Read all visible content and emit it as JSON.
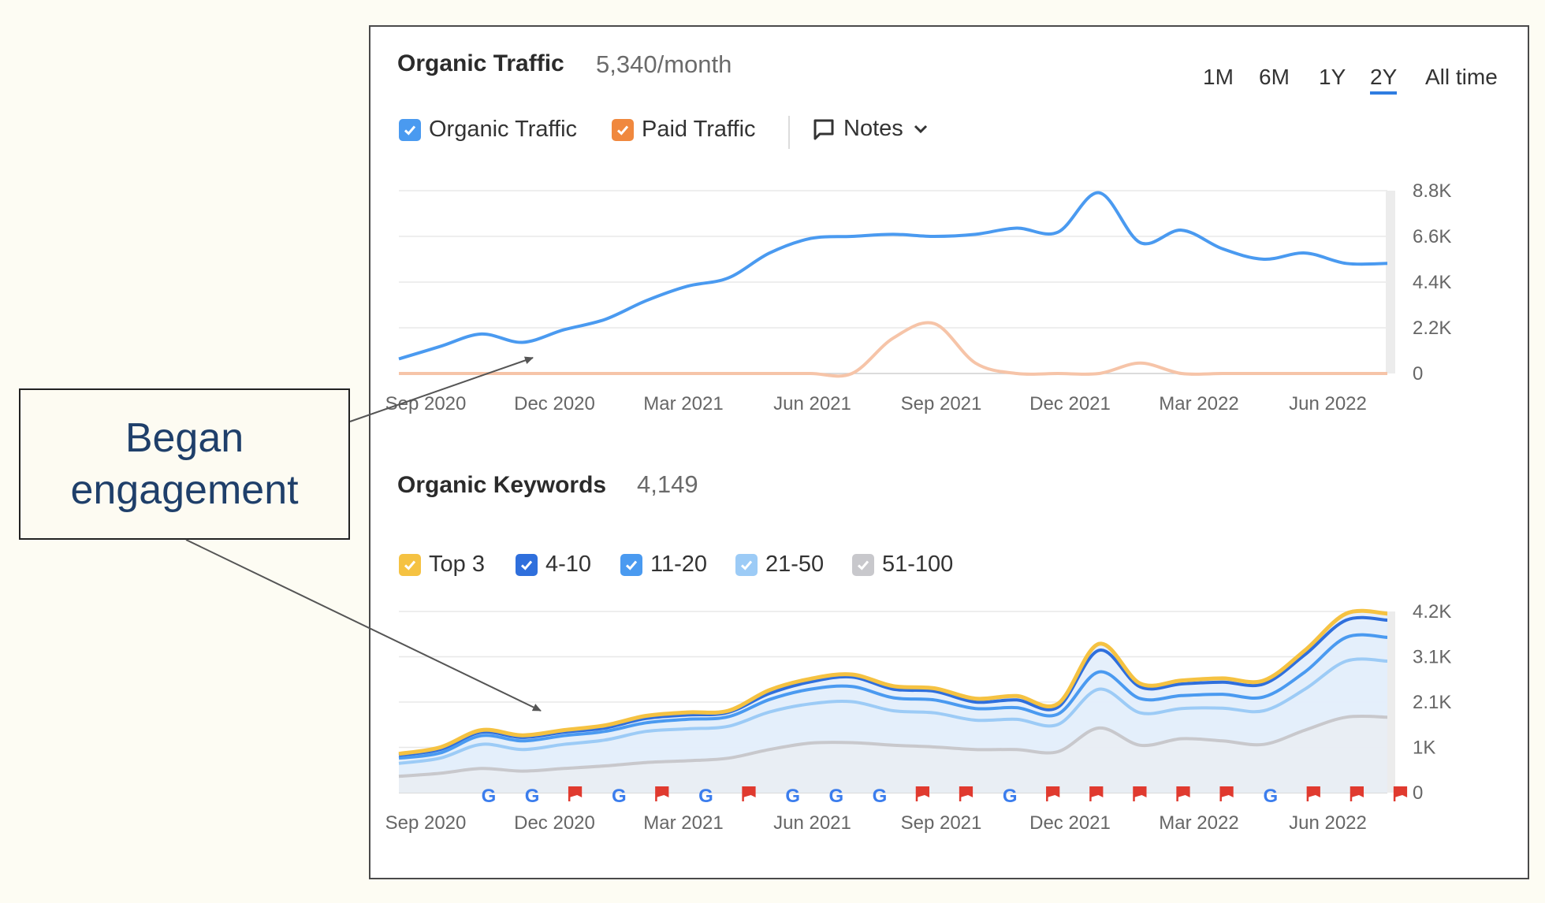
{
  "panel": {
    "traffic_title": "Organic Traffic",
    "traffic_value": "5,340/month",
    "ranges": [
      "1M",
      "6M",
      "1Y",
      "2Y",
      "All time"
    ],
    "active_range": "2Y",
    "traffic_legend": [
      {
        "label": "Organic Traffic",
        "color": "#4a9af0"
      },
      {
        "label": "Paid Traffic",
        "color": "#f0883e"
      }
    ],
    "notes_label": "Notes",
    "keywords_title": "Organic Keywords",
    "keywords_value": "4,149",
    "keywords_legend": [
      {
        "label": "Top 3",
        "color": "#f5c242"
      },
      {
        "label": "4-10",
        "color": "#2f6fdc"
      },
      {
        "label": "11-20",
        "color": "#4a9af0"
      },
      {
        "label": "21-50",
        "color": "#9ccbf6"
      },
      {
        "label": "51-100",
        "color": "#c8c8cc"
      }
    ]
  },
  "annotation": {
    "text_line1": "Began",
    "text_line2": "engagement"
  },
  "chart_data": [
    {
      "type": "line",
      "x_ticks": [
        "Sep 2020",
        "Dec 2020",
        "Mar 2021",
        "Jun 2021",
        "Sep 2021",
        "Dec 2021",
        "Mar 2022",
        "Jun 2022"
      ],
      "y_ticks": [
        "0",
        "2.2K",
        "4.4K",
        "6.6K",
        "8.8K"
      ],
      "ylim": [
        0,
        8800
      ],
      "x": [
        0,
        1,
        2,
        3,
        4,
        5,
        6,
        7,
        8,
        9,
        10,
        11,
        12,
        13,
        14,
        15,
        16,
        17,
        18,
        19,
        20,
        21,
        22,
        23,
        24
      ],
      "series": [
        {
          "name": "Organic Traffic",
          "color": "#4a9af0",
          "values": [
            700,
            1300,
            1900,
            1500,
            2100,
            2600,
            3500,
            4200,
            4600,
            5800,
            6500,
            6600,
            6700,
            6600,
            6700,
            7000,
            6800,
            8700,
            6300,
            6900,
            6000,
            5500,
            5800,
            5300,
            5300
          ]
        },
        {
          "name": "Paid Traffic",
          "color": "#f6c4a8",
          "values": [
            0,
            0,
            0,
            0,
            0,
            0,
            0,
            0,
            0,
            0,
            0,
            0,
            1700,
            2400,
            500,
            0,
            0,
            0,
            500,
            0,
            0,
            0,
            0,
            0,
            0
          ]
        }
      ]
    },
    {
      "type": "area",
      "x_ticks": [
        "Sep 2020",
        "Dec 2020",
        "Mar 2021",
        "Jun 2021",
        "Sep 2021",
        "Dec 2021",
        "Mar 2022",
        "Jun 2022"
      ],
      "y_ticks": [
        "0",
        "1K",
        "2.1K",
        "3.1K",
        "4.2K"
      ],
      "ylim": [
        0,
        4200
      ],
      "x": [
        0,
        1,
        2,
        3,
        4,
        5,
        6,
        7,
        8,
        9,
        10,
        11,
        12,
        13,
        14,
        15,
        16,
        17,
        18,
        19,
        20,
        21,
        22,
        23,
        24
      ],
      "series": [
        {
          "name": "51-100",
          "color": "#c8c8cc",
          "values": [
            380,
            450,
            560,
            500,
            560,
            620,
            700,
            740,
            800,
            1000,
            1150,
            1160,
            1100,
            1060,
            1000,
            1000,
            950,
            1500,
            1100,
            1250,
            1200,
            1120,
            1450,
            1750,
            1750
          ]
        },
        {
          "name": "21-50",
          "color": "#9ccbf6",
          "values": [
            680,
            800,
            1120,
            1000,
            1120,
            1220,
            1420,
            1480,
            1540,
            1870,
            2060,
            2110,
            1900,
            1850,
            1680,
            1700,
            1580,
            2400,
            1850,
            1950,
            1960,
            1900,
            2400,
            3050,
            3050
          ]
        },
        {
          "name": "11-20",
          "color": "#4a9af0",
          "values": [
            800,
            920,
            1320,
            1200,
            1320,
            1420,
            1620,
            1700,
            1760,
            2160,
            2400,
            2460,
            2200,
            2150,
            1950,
            1970,
            1820,
            2800,
            2180,
            2250,
            2280,
            2220,
            2800,
            3600,
            3600
          ]
        },
        {
          "name": "4-10",
          "color": "#2f6fdc",
          "values": [
            870,
            1000,
            1400,
            1280,
            1400,
            1500,
            1720,
            1800,
            1860,
            2300,
            2570,
            2680,
            2400,
            2350,
            2100,
            2150,
            1980,
            3300,
            2450,
            2520,
            2560,
            2520,
            3200,
            4000,
            4000
          ]
        },
        {
          "name": "Top 3",
          "color": "#f5c242",
          "values": [
            900,
            1050,
            1450,
            1330,
            1450,
            1560,
            1780,
            1860,
            1900,
            2380,
            2640,
            2740,
            2470,
            2420,
            2180,
            2240,
            2060,
            3450,
            2530,
            2600,
            2650,
            2600,
            3300,
            4150,
            4150
          ]
        }
      ],
      "event_markers": [
        "G",
        "G",
        "F",
        "G",
        "F",
        "G",
        "F",
        "G",
        "G",
        "G",
        "F",
        "F",
        "G",
        "F",
        "F",
        "F",
        "F",
        "F",
        "G",
        "F",
        "F",
        "F"
      ]
    }
  ]
}
